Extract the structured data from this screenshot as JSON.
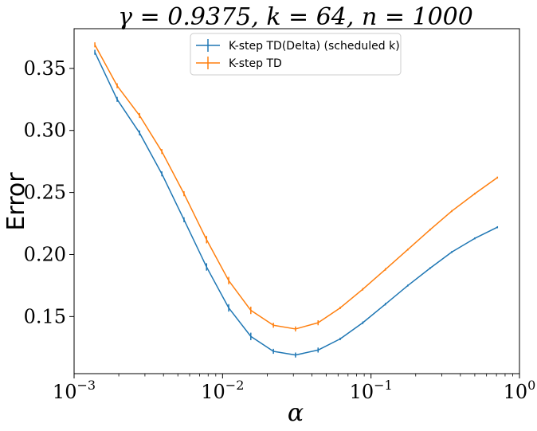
{
  "chart_data": {
    "type": "line",
    "title": "γ = 0.9375, k = 64, n = 1000",
    "xlabel": "α",
    "ylabel": "Error",
    "xscale": "log",
    "xlim": [
      0.001,
      1
    ],
    "ylim": [
      0.104,
      0.382
    ],
    "x_ticks": [
      {
        "value": 0.001,
        "base": "10",
        "exp": "−3"
      },
      {
        "value": 0.01,
        "base": "10",
        "exp": "−2"
      },
      {
        "value": 0.1,
        "base": "10",
        "exp": "−1"
      },
      {
        "value": 1,
        "base": "10",
        "exp": "0"
      }
    ],
    "y_ticks": [
      {
        "value": 0.15,
        "label": "0.15"
      },
      {
        "value": 0.2,
        "label": "0.20"
      },
      {
        "value": 0.25,
        "label": "0.25"
      },
      {
        "value": 0.3,
        "label": "0.30"
      },
      {
        "value": 0.35,
        "label": "0.35"
      }
    ],
    "grid": false,
    "legend_position": "top-center",
    "x": [
      0.00138,
      0.00195,
      0.00276,
      0.0039,
      0.0055,
      0.0078,
      0.011,
      0.0155,
      0.022,
      0.031,
      0.044,
      0.062,
      0.088,
      0.125,
      0.177,
      0.25,
      0.35,
      0.5,
      0.71
    ],
    "series": [
      {
        "name": "K-step TD(Delta) (scheduled k)",
        "color": "#1f77b4",
        "values": [
          0.363,
          0.325,
          0.298,
          0.265,
          0.228,
          0.19,
          0.157,
          0.134,
          0.122,
          0.119,
          0.123,
          0.132,
          0.145,
          0.16,
          0.175,
          0.189,
          0.202,
          0.213,
          0.222
        ],
        "errors": [
          0.002,
          0.002,
          0.002,
          0.002,
          0.002,
          0.003,
          0.003,
          0.003,
          0.002,
          0.002,
          0.002,
          0.001,
          0.001,
          0.001,
          0.0008,
          0.0008,
          0.0008,
          0.0008,
          0.0008
        ]
      },
      {
        "name": "K-step TD",
        "color": "#ff7f0e",
        "values": [
          0.369,
          0.336,
          0.312,
          0.283,
          0.249,
          0.212,
          0.179,
          0.155,
          0.143,
          0.14,
          0.145,
          0.157,
          0.172,
          0.188,
          0.204,
          0.22,
          0.235,
          0.249,
          0.262
        ],
        "errors": [
          0.002,
          0.002,
          0.002,
          0.002,
          0.002,
          0.003,
          0.003,
          0.003,
          0.002,
          0.002,
          0.002,
          0.001,
          0.001,
          0.001,
          0.0008,
          0.0008,
          0.0008,
          0.0008,
          0.0008
        ]
      }
    ]
  }
}
